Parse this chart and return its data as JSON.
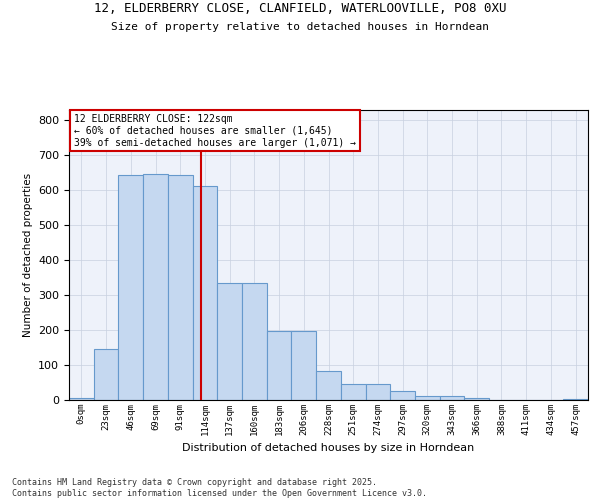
{
  "title_line1": "12, ELDERBERRY CLOSE, CLANFIELD, WATERLOOVILLE, PO8 0XU",
  "title_line2": "Size of property relative to detached houses in Horndean",
  "xlabel": "Distribution of detached houses by size in Horndean",
  "ylabel": "Number of detached properties",
  "bin_labels": [
    "0sqm",
    "23sqm",
    "46sqm",
    "69sqm",
    "91sqm",
    "114sqm",
    "137sqm",
    "160sqm",
    "183sqm",
    "206sqm",
    "228sqm",
    "251sqm",
    "274sqm",
    "297sqm",
    "320sqm",
    "343sqm",
    "366sqm",
    "388sqm",
    "411sqm",
    "434sqm",
    "457sqm"
  ],
  "bar_values": [
    5,
    145,
    645,
    648,
    645,
    612,
    335,
    335,
    198,
    198,
    83,
    45,
    45,
    27,
    12,
    12,
    5,
    0,
    0,
    0,
    3
  ],
  "bar_color": "#c5d8f0",
  "bar_edge_color": "#6699cc",
  "vline_x": 5.35,
  "vline_color": "#cc0000",
  "annotation_title": "12 ELDERBERRY CLOSE: 122sqm",
  "annotation_line2": "← 60% of detached houses are smaller (1,645)",
  "annotation_line3": "39% of semi-detached houses are larger (1,071) →",
  "ylim": [
    0,
    830
  ],
  "yticks": [
    0,
    100,
    200,
    300,
    400,
    500,
    600,
    700,
    800
  ],
  "background_color": "#eef2fa",
  "footer_line1": "Contains HM Land Registry data © Crown copyright and database right 2025.",
  "footer_line2": "Contains public sector information licensed under the Open Government Licence v3.0."
}
